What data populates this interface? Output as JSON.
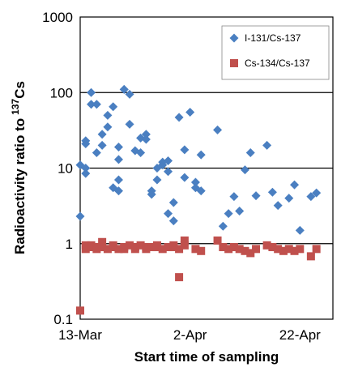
{
  "chart_data": {
    "type": "scatter",
    "xlabel": "Start time of sampling",
    "ylabel": "Radioactivity ratio to",
    "ylabel_superscript": "137",
    "ylabel_suffix": "Cs",
    "yscale": "log",
    "ylim": [
      0.1,
      1000
    ],
    "y_ticks": [
      "0.1",
      "1",
      "10",
      "100",
      "1000"
    ],
    "xlim": [
      "2011-03-13",
      "2011-04-28"
    ],
    "x_ticks": [
      "13-Mar",
      "2-Apr",
      "22-Apr"
    ],
    "grid": "horizontal major",
    "legend_position": "top-right",
    "series": [
      {
        "name": "I-131/Cs-137",
        "color": "#4a7fc1",
        "marker": "diamond",
        "points": [
          [
            "2011-03-13",
            2.3
          ],
          [
            "2011-03-13",
            11
          ],
          [
            "2011-03-14",
            10
          ],
          [
            "2011-03-14",
            8.5
          ],
          [
            "2011-03-14",
            21
          ],
          [
            "2011-03-14",
            23
          ],
          [
            "2011-03-15",
            70
          ],
          [
            "2011-03-15",
            100
          ],
          [
            "2011-03-16",
            70
          ],
          [
            "2011-03-16",
            16
          ],
          [
            "2011-03-17",
            20
          ],
          [
            "2011-03-17",
            28
          ],
          [
            "2011-03-18",
            35
          ],
          [
            "2011-03-18",
            50
          ],
          [
            "2011-03-19",
            65
          ],
          [
            "2011-03-19",
            5.5
          ],
          [
            "2011-03-20",
            5
          ],
          [
            "2011-03-20",
            19
          ],
          [
            "2011-03-20",
            13
          ],
          [
            "2011-03-20",
            7
          ],
          [
            "2011-03-21",
            110
          ],
          [
            "2011-03-21",
            110
          ],
          [
            "2011-03-22",
            38
          ],
          [
            "2011-03-22",
            95
          ],
          [
            "2011-03-23",
            17
          ],
          [
            "2011-03-24",
            25
          ],
          [
            "2011-03-24",
            16
          ],
          [
            "2011-03-25",
            28
          ],
          [
            "2011-03-25",
            24
          ],
          [
            "2011-03-26",
            4.5
          ],
          [
            "2011-03-26",
            5
          ],
          [
            "2011-03-27",
            7
          ],
          [
            "2011-03-27",
            10
          ],
          [
            "2011-03-28",
            11
          ],
          [
            "2011-03-28",
            12
          ],
          [
            "2011-03-29",
            9
          ],
          [
            "2011-03-29",
            12.5
          ],
          [
            "2011-03-29",
            2.5
          ],
          [
            "2011-03-30",
            2
          ],
          [
            "2011-03-30",
            3.5
          ],
          [
            "2011-03-31",
            47
          ],
          [
            "2011-04-01",
            7.5
          ],
          [
            "2011-04-01",
            17.5
          ],
          [
            "2011-04-02",
            55
          ],
          [
            "2011-04-03",
            6.5
          ],
          [
            "2011-04-03",
            5.5
          ],
          [
            "2011-04-04",
            5
          ],
          [
            "2011-04-04",
            15
          ],
          [
            "2011-04-07",
            32
          ],
          [
            "2011-04-08",
            1.7
          ],
          [
            "2011-04-09",
            2.5
          ],
          [
            "2011-04-10",
            4.2
          ],
          [
            "2011-04-11",
            2.7
          ],
          [
            "2011-04-12",
            9.5
          ],
          [
            "2011-04-13",
            16
          ],
          [
            "2011-04-14",
            4.3
          ],
          [
            "2011-04-16",
            20
          ],
          [
            "2011-04-17",
            4.8
          ],
          [
            "2011-04-18",
            3.2
          ],
          [
            "2011-04-20",
            4
          ],
          [
            "2011-04-21",
            6
          ],
          [
            "2011-04-22",
            1.5
          ],
          [
            "2011-04-24",
            4.2
          ],
          [
            "2011-04-25",
            4.7
          ]
        ]
      },
      {
        "name": "Cs-134/Cs-137",
        "color": "#c0504d",
        "marker": "square",
        "points": [
          [
            "2011-03-13",
            0.13
          ],
          [
            "2011-03-14",
            0.95
          ],
          [
            "2011-03-14",
            0.85
          ],
          [
            "2011-03-15",
            0.9
          ],
          [
            "2011-03-15",
            0.95
          ],
          [
            "2011-03-16",
            0.85
          ],
          [
            "2011-03-16",
            0.9
          ],
          [
            "2011-03-17",
            1.05
          ],
          [
            "2011-03-17",
            0.9
          ],
          [
            "2011-03-18",
            0.85
          ],
          [
            "2011-03-19",
            0.95
          ],
          [
            "2011-03-19",
            0.9
          ],
          [
            "2011-03-20",
            0.85
          ],
          [
            "2011-03-21",
            0.9
          ],
          [
            "2011-03-21",
            0.85
          ],
          [
            "2011-03-22",
            0.95
          ],
          [
            "2011-03-23",
            0.9
          ],
          [
            "2011-03-23",
            0.85
          ],
          [
            "2011-03-24",
            0.95
          ],
          [
            "2011-03-25",
            0.9
          ],
          [
            "2011-03-25",
            0.85
          ],
          [
            "2011-03-26",
            0.9
          ],
          [
            "2011-03-27",
            0.95
          ],
          [
            "2011-03-27",
            0.9
          ],
          [
            "2011-03-28",
            0.85
          ],
          [
            "2011-03-29",
            0.9
          ],
          [
            "2011-03-30",
            0.95
          ],
          [
            "2011-03-30",
            0.9
          ],
          [
            "2011-03-31",
            0.85
          ],
          [
            "2011-03-31",
            0.36
          ],
          [
            "2011-04-01",
            0.95
          ],
          [
            "2011-04-01",
            1.1
          ],
          [
            "2011-04-03",
            0.85
          ],
          [
            "2011-04-04",
            0.8
          ],
          [
            "2011-04-07",
            1.1
          ],
          [
            "2011-04-08",
            0.9
          ],
          [
            "2011-04-09",
            0.85
          ],
          [
            "2011-04-10",
            0.9
          ],
          [
            "2011-04-11",
            0.85
          ],
          [
            "2011-04-12",
            0.8
          ],
          [
            "2011-04-13",
            0.75
          ],
          [
            "2011-04-14",
            0.85
          ],
          [
            "2011-04-16",
            0.95
          ],
          [
            "2011-04-17",
            0.9
          ],
          [
            "2011-04-18",
            0.85
          ],
          [
            "2011-04-19",
            0.8
          ],
          [
            "2011-04-20",
            0.85
          ],
          [
            "2011-04-21",
            0.8
          ],
          [
            "2011-04-22",
            0.85
          ],
          [
            "2011-04-24",
            0.68
          ],
          [
            "2011-04-25",
            0.85
          ]
        ]
      }
    ]
  }
}
